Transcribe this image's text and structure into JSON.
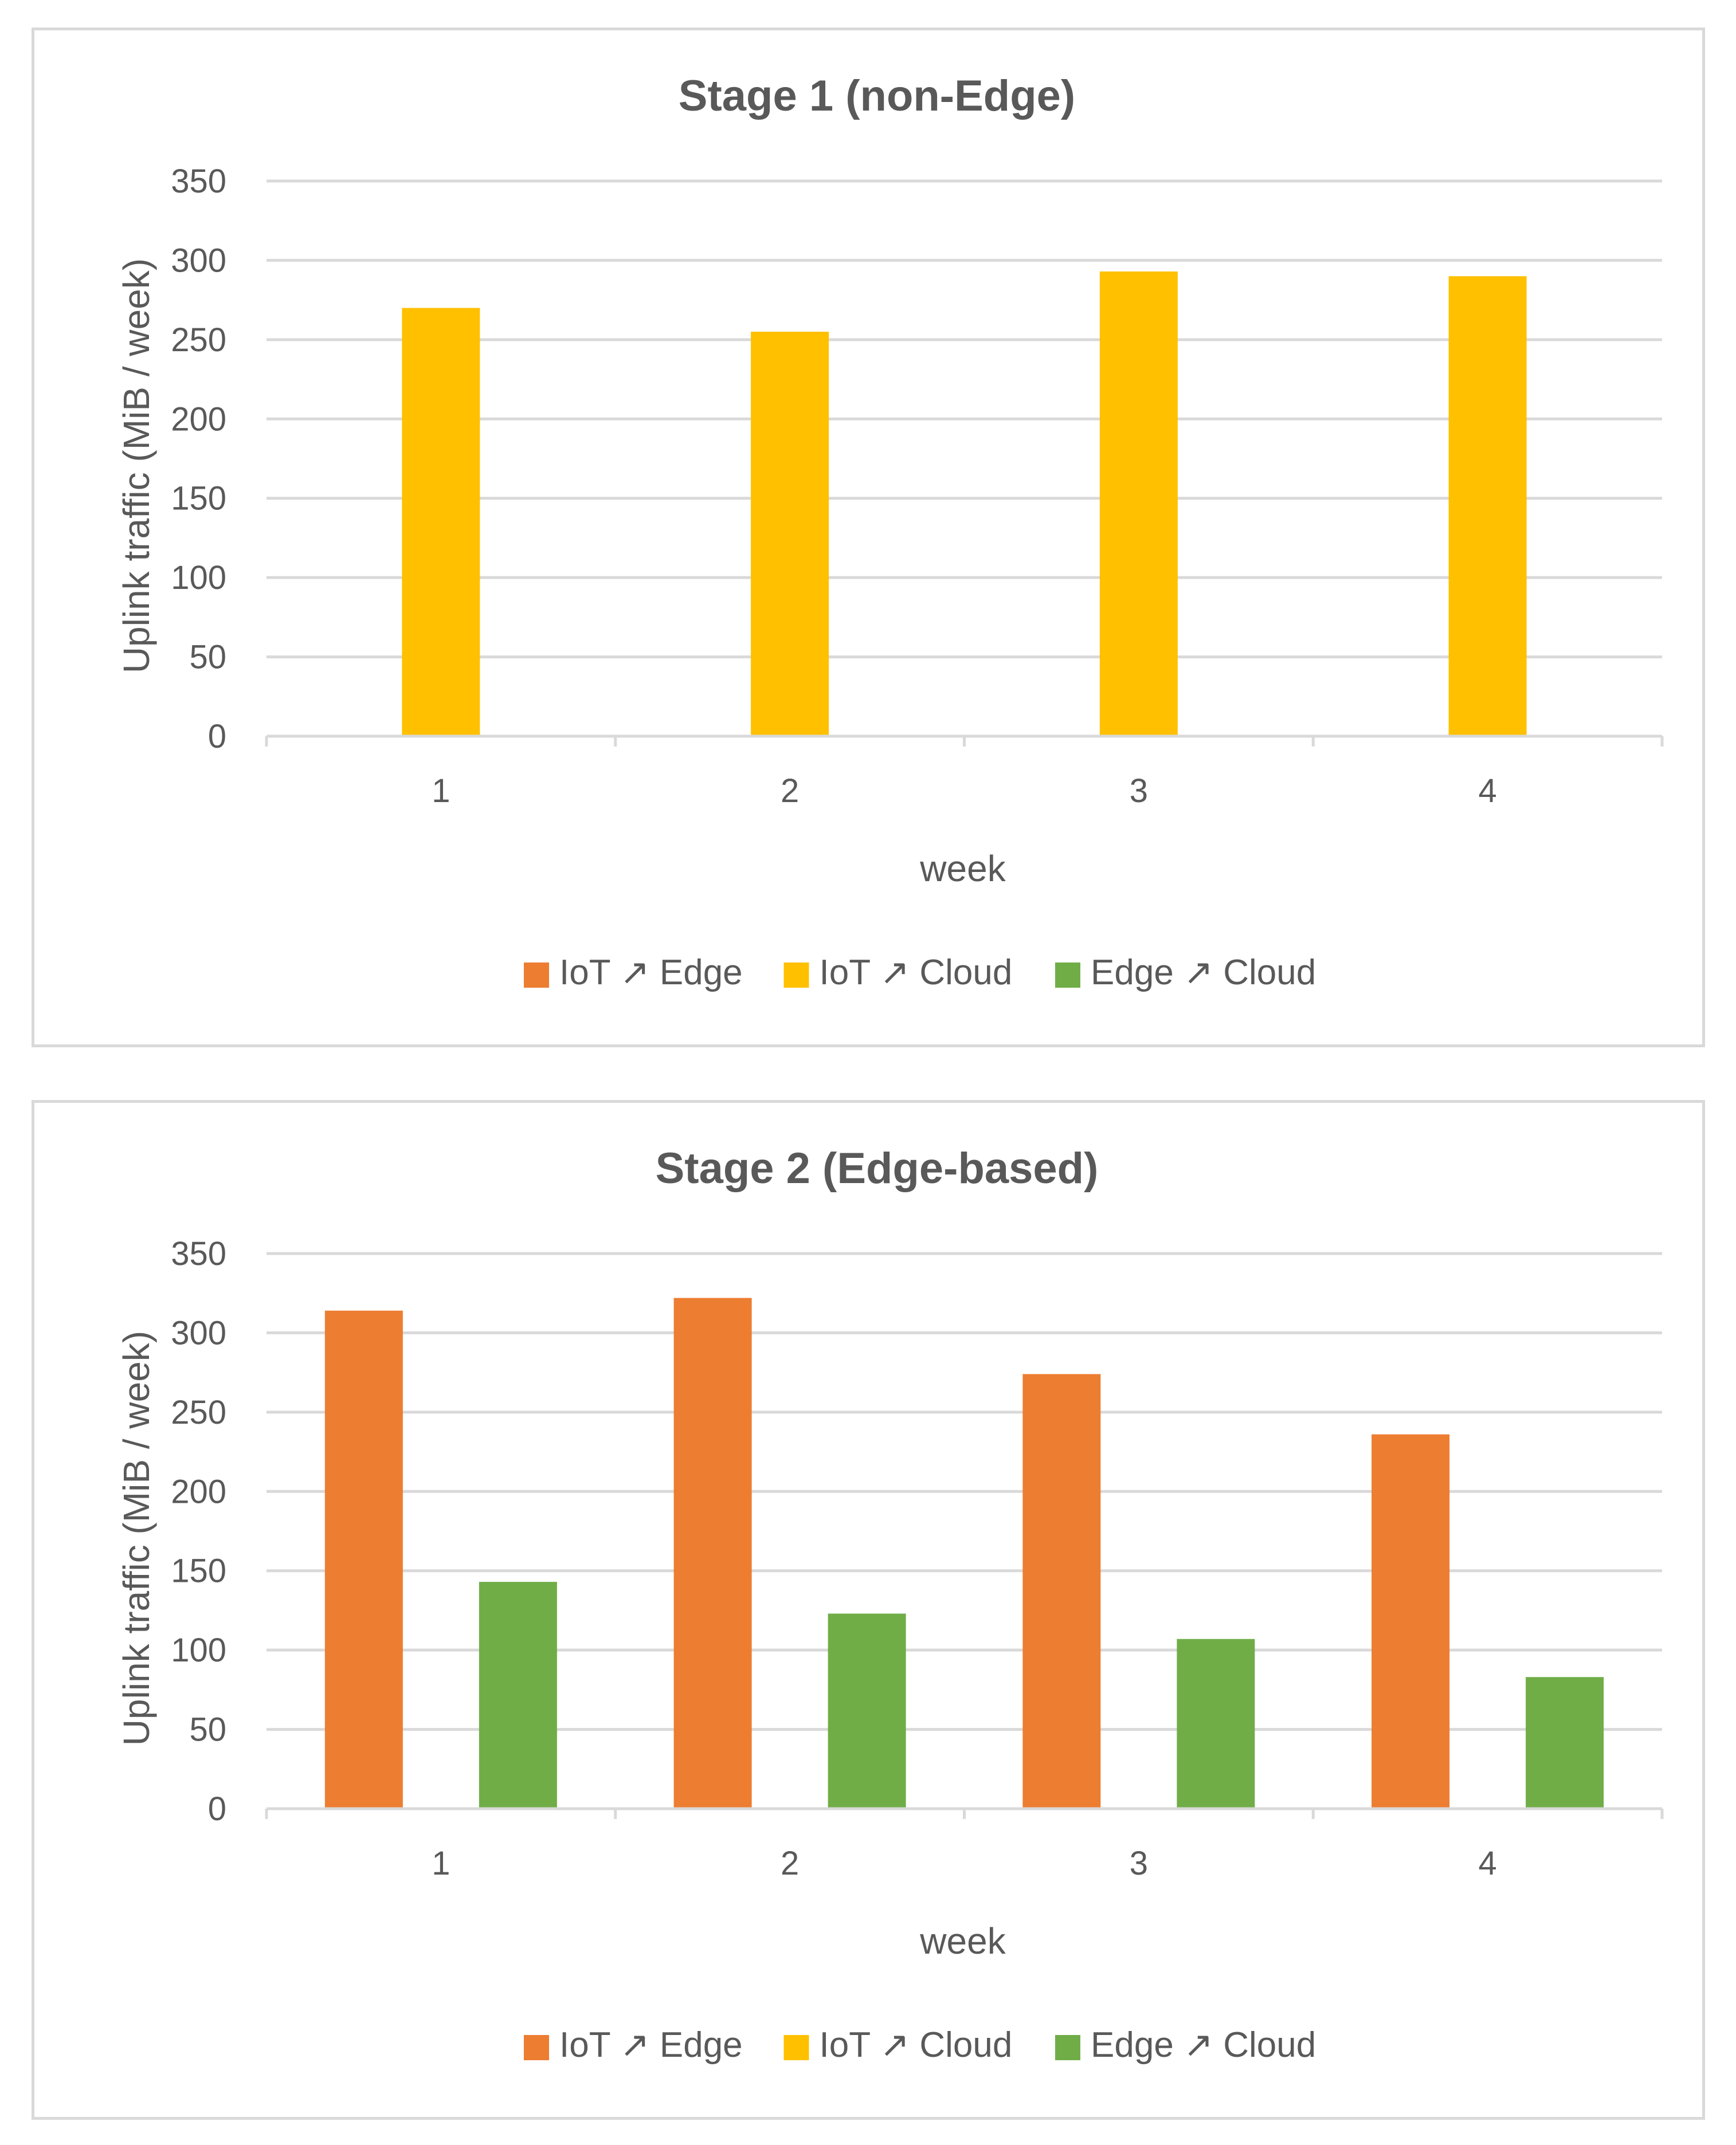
{
  "chart_data": [
    {
      "type": "bar",
      "title": "Stage 1 (non-Edge)",
      "xlabel": "week",
      "ylabel": "Uplink traffic (MiB / week)",
      "categories": [
        "1",
        "2",
        "3",
        "4"
      ],
      "ylim": [
        0,
        350
      ],
      "yticks": [
        "0",
        "50",
        "100",
        "150",
        "200",
        "250",
        "300",
        "350"
      ],
      "grid": true,
      "legend_position": "bottom",
      "series": [
        {
          "name": "IoT ↗ Edge",
          "color": "#ed7d31",
          "values": [
            null,
            null,
            null,
            null
          ]
        },
        {
          "name": "IoT ↗ Cloud",
          "color": "#ffc000",
          "values": [
            270,
            255,
            293,
            290
          ]
        },
        {
          "name": "Edge ↗ Cloud",
          "color": "#70ad47",
          "values": [
            null,
            null,
            null,
            null
          ]
        }
      ]
    },
    {
      "type": "bar",
      "title": "Stage 2 (Edge-based)",
      "xlabel": "week",
      "ylabel": "Uplink traffic (MiB / week)",
      "categories": [
        "1",
        "2",
        "3",
        "4"
      ],
      "ylim": [
        0,
        350
      ],
      "yticks": [
        "0",
        "50",
        "100",
        "150",
        "200",
        "250",
        "300",
        "350"
      ],
      "grid": true,
      "legend_position": "bottom",
      "series": [
        {
          "name": "IoT ↗ Edge",
          "color": "#ed7d31",
          "values": [
            314,
            322,
            274,
            236
          ]
        },
        {
          "name": "IoT ↗ Cloud",
          "color": "#ffc000",
          "values": [
            null,
            null,
            null,
            null
          ]
        },
        {
          "name": "Edge ↗ Cloud",
          "color": "#70ad47",
          "values": [
            143,
            123,
            107,
            83
          ]
        }
      ]
    }
  ]
}
